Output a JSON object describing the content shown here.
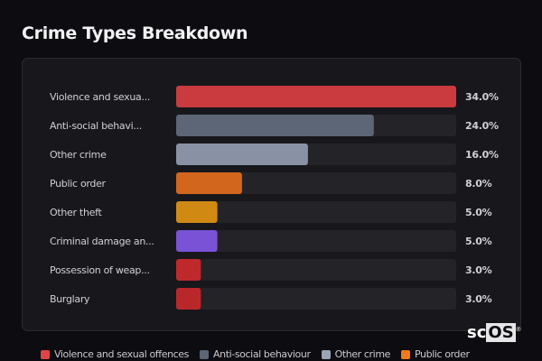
{
  "title": "Crime Types Breakdown",
  "chart_data": {
    "type": "bar",
    "orientation": "horizontal",
    "title": "Crime Types Breakdown",
    "categories": [
      "Violence and sexua...",
      "Anti-social behavi...",
      "Other crime",
      "Public order",
      "Other theft",
      "Criminal damage an...",
      "Possession of weap...",
      "Burglary"
    ],
    "values": [
      34.0,
      24.0,
      16.0,
      8.0,
      5.0,
      5.0,
      3.0,
      3.0
    ],
    "value_labels": [
      "34.0%",
      "24.0%",
      "16.0%",
      "8.0%",
      "5.0%",
      "5.0%",
      "3.0%",
      "3.0%"
    ],
    "colors": [
      "#c93b3e",
      "#5c6676",
      "#8892a4",
      "#d2661c",
      "#d08a14",
      "#7a52d6",
      "#c0292b",
      "#b8282b"
    ],
    "xlim": [
      0,
      34
    ],
    "legend_position": "bottom"
  },
  "legend": [
    {
      "label": "Violence and sexual offences",
      "color": "#e04545"
    },
    {
      "label": "Anti-social behaviour",
      "color": "#5c6676"
    },
    {
      "label": "Other crime",
      "color": "#9aa5b6"
    },
    {
      "label": "Public order",
      "color": "#f07a1a"
    }
  ],
  "logo": {
    "a": "sc",
    "b": "OS",
    "mark": "®"
  }
}
